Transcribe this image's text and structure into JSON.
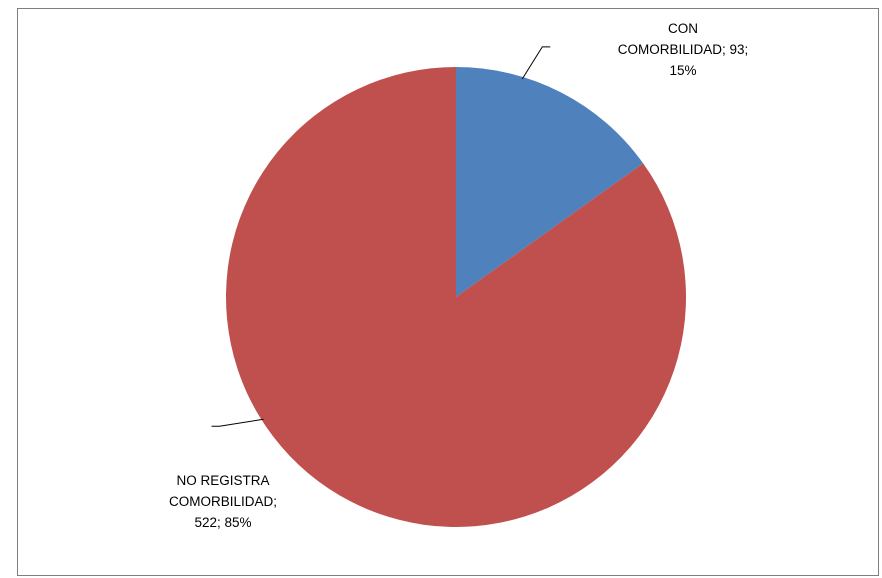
{
  "chart_data": {
    "type": "pie",
    "slices": [
      {
        "name": "CON COMORBILIDAD",
        "value": 93,
        "percent": "15%",
        "color": "#4f81bd",
        "label_lines": [
          "CON",
          "COMORBILIDAD; 93;",
          "15%"
        ]
      },
      {
        "name": "NO REGISTRA COMORBILIDAD",
        "value": 522,
        "percent": "85%",
        "color": "#c0504d",
        "label_lines": [
          "NO REGISTRA",
          "COMORBILIDAD;",
          "522; 85%"
        ]
      }
    ],
    "start_angle_deg": 0,
    "direction": "clockwise",
    "legend": "none",
    "data_labels": "outside with leader lines"
  }
}
